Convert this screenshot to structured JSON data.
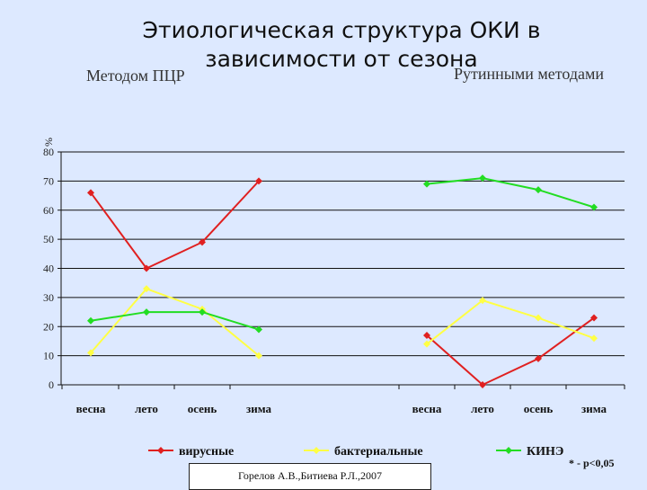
{
  "page": {
    "title": "Этиологическая структура ОКИ в зависимости от сезона",
    "left_method": "Методом ПЦР",
    "right_method": "Рутинными методами",
    "citation": "Горелов А.В.,Битиева Р.Л.,2007",
    "note": "* - р<0,05"
  },
  "chart_data": {
    "type": "line",
    "ylabel": "%",
    "ylim": [
      0,
      80
    ],
    "yticks": [
      0,
      10,
      20,
      30,
      40,
      50,
      60,
      70,
      80
    ],
    "grid": true,
    "legend_position": "bottom",
    "panels": [
      {
        "label": "Методом ПЦР",
        "categories": [
          "весна",
          "лето",
          "осень",
          "зима"
        ],
        "series": [
          {
            "name": "вирусные",
            "color": "#e02020",
            "values": [
              66,
              40,
              49,
              70
            ]
          },
          {
            "name": "бактериальные",
            "color": "#ffff44",
            "values": [
              11,
              33,
              26,
              10
            ]
          },
          {
            "name": "КИНЭ",
            "color": "#22dd22",
            "values": [
              22,
              25,
              25,
              19
            ]
          }
        ]
      },
      {
        "label": "Рутинными методами",
        "categories": [
          "весна",
          "лето",
          "осень",
          "зима"
        ],
        "series": [
          {
            "name": "вирусные",
            "color": "#e02020",
            "values": [
              17,
              0,
              9,
              23
            ]
          },
          {
            "name": "бактериальные",
            "color": "#ffff44",
            "values": [
              14,
              29,
              23,
              16
            ]
          },
          {
            "name": "КИНЭ",
            "color": "#22dd22",
            "values": [
              69,
              71,
              67,
              61
            ]
          }
        ]
      }
    ]
  }
}
